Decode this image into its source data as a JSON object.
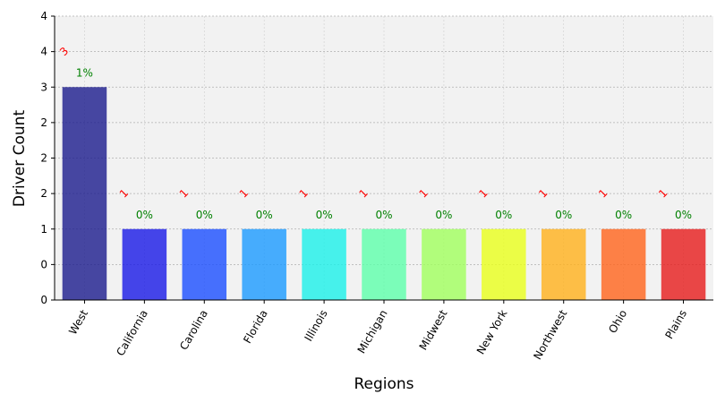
{
  "chart_data": {
    "type": "bar",
    "xlabel": "Regions",
    "ylabel": "Driver Count",
    "categories": [
      "West",
      "California",
      "Carolina",
      "Florida",
      "Illinois",
      "Michigan",
      "Midwest",
      "New York",
      "Northwest",
      "Ohio",
      "Plains"
    ],
    "values": [
      3,
      1,
      1,
      1,
      1,
      1,
      1,
      1,
      1,
      1,
      1
    ],
    "count_labels": [
      "3",
      "1",
      "1",
      "1",
      "1",
      "1",
      "1",
      "1",
      "1",
      "1",
      "1"
    ],
    "percent_labels": [
      "1%",
      "0%",
      "0%",
      "0%",
      "0%",
      "0%",
      "0%",
      "0%",
      "0%",
      "0%",
      "0%"
    ],
    "bar_colors": [
      "#1a1a8c",
      "#1818e6",
      "#1a4dff",
      "#1a9aff",
      "#1af0e8",
      "#5cffaa",
      "#a0ff5c",
      "#e8ff1a",
      "#ffb01a",
      "#ff631a",
      "#e61a1a"
    ],
    "ylim": [
      0,
      4
    ],
    "y_ticks": [
      {
        "value": 0,
        "label": "0"
      },
      {
        "value": 0.5,
        "label": "0"
      },
      {
        "value": 1,
        "label": "1"
      },
      {
        "value": 1.5,
        "label": "2"
      },
      {
        "value": 2,
        "label": "2"
      },
      {
        "value": 2.5,
        "label": "2"
      },
      {
        "value": 3,
        "label": "3"
      },
      {
        "value": 3.5,
        "label": "4"
      },
      {
        "value": 4,
        "label": "4"
      }
    ],
    "grid": true,
    "background": "#f2f2f2",
    "count_label_color": "#ff0000",
    "percent_label_color": "#008000"
  }
}
